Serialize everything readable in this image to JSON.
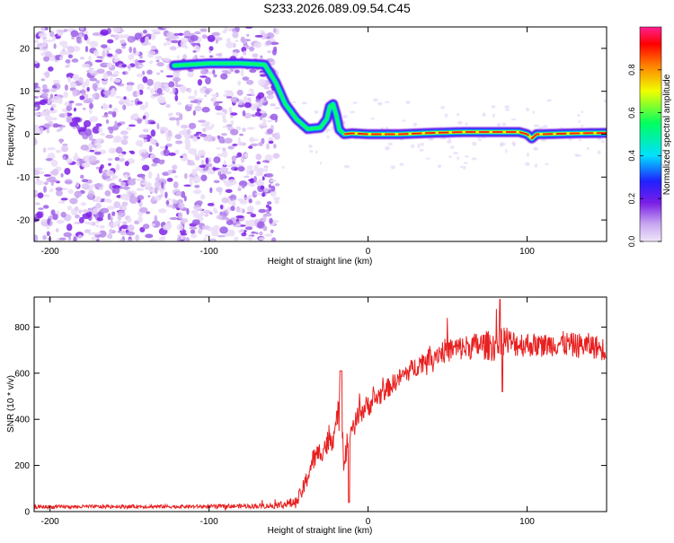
{
  "figure": {
    "title": "S233.2026.089.09.54.C45"
  },
  "chart_data": [
    {
      "type": "heatmap",
      "title": "S233.2026.089.09.54.C45",
      "xlabel": "Height of straight line (km)",
      "ylabel": "Frequency (Hz)",
      "xlim": [
        -210,
        150
      ],
      "ylim": [
        -25,
        25
      ],
      "xticks": [
        -200,
        -100,
        0,
        100
      ],
      "yticks": [
        -20,
        -10,
        0,
        10,
        20
      ],
      "xtick_labels": [
        "-200",
        "-100",
        "0",
        "100"
      ],
      "ytick_labels": [
        "-20",
        "-10",
        "0",
        "10",
        "20"
      ],
      "noise_region_x": [
        -210,
        -57
      ],
      "ridge": {
        "description": "frequency (Hz) of the bright spectral line vs height (km)",
        "x": [
          -122,
          -100,
          -80,
          -65,
          -58,
          -52,
          -45,
          -38,
          -30,
          -26,
          -24,
          -22,
          -20,
          -18,
          -15,
          -10,
          0,
          20,
          40,
          60,
          80,
          95,
          100,
          103,
          106,
          110,
          130,
          150
        ],
        "y": [
          16,
          16.5,
          16.5,
          16.2,
          12,
          7,
          3.5,
          1.2,
          1.5,
          3.5,
          6.5,
          7,
          4.5,
          1,
          0,
          0.2,
          0,
          0,
          0.3,
          0.5,
          0.5,
          0.5,
          0,
          -1,
          0,
          0,
          0.2,
          0.3
        ]
      },
      "colorbar": {
        "label": "Normalized spectral amplitude",
        "range": [
          0,
          1
        ],
        "ticks": [
          0.0,
          0.2,
          0.4,
          0.6,
          0.8
        ],
        "tick_labels": [
          "0.0",
          "0.2",
          "0.4",
          "0.6",
          "0.8"
        ],
        "colormap": [
          "#f0e6fa",
          "#c8a8f0",
          "#7a1ee6",
          "#2020ff",
          "#00e0ff",
          "#00ff60",
          "#f0ff00",
          "#ff8000",
          "#ff0000",
          "#ff2090"
        ]
      }
    },
    {
      "type": "line",
      "xlabel": "Height of straight line (km)",
      "ylabel": "SNR (10 * v/v)",
      "xlim": [
        -210,
        150
      ],
      "ylim": [
        0,
        930
      ],
      "xticks": [
        -200,
        -100,
        0,
        100
      ],
      "yticks": [
        0,
        200,
        400,
        600,
        800
      ],
      "xtick_labels": [
        "-200",
        "-100",
        "0",
        "100"
      ],
      "ytick_labels": [
        "0",
        "200",
        "400",
        "600",
        "800"
      ],
      "line_color": "#e82020",
      "series": [
        {
          "name": "SNR",
          "x": [
            -210,
            -150,
            -100,
            -60,
            -45,
            -40,
            -35,
            -30,
            -25,
            -20,
            -17,
            -15,
            -13,
            -11,
            -8,
            -5,
            0,
            10,
            20,
            30,
            40,
            50,
            60,
            70,
            80,
            83,
            90,
            100,
            110,
            120,
            130,
            140,
            150
          ],
          "y": [
            20,
            22,
            22,
            25,
            40,
            110,
            220,
            260,
            300,
            360,
            480,
            200,
            320,
            360,
            380,
            430,
            460,
            520,
            580,
            630,
            680,
            700,
            710,
            720,
            720,
            760,
            730,
            725,
            720,
            730,
            720,
            720,
            700
          ],
          "noise_amplitude": [
            8,
            8,
            8,
            12,
            25,
            40,
            50,
            50,
            60,
            70,
            90,
            60,
            60,
            55,
            50,
            50,
            50,
            45,
            40,
            45,
            50,
            55,
            55,
            60,
            70,
            80,
            60,
            55,
            50,
            55,
            55,
            55,
            50
          ]
        }
      ]
    }
  ]
}
